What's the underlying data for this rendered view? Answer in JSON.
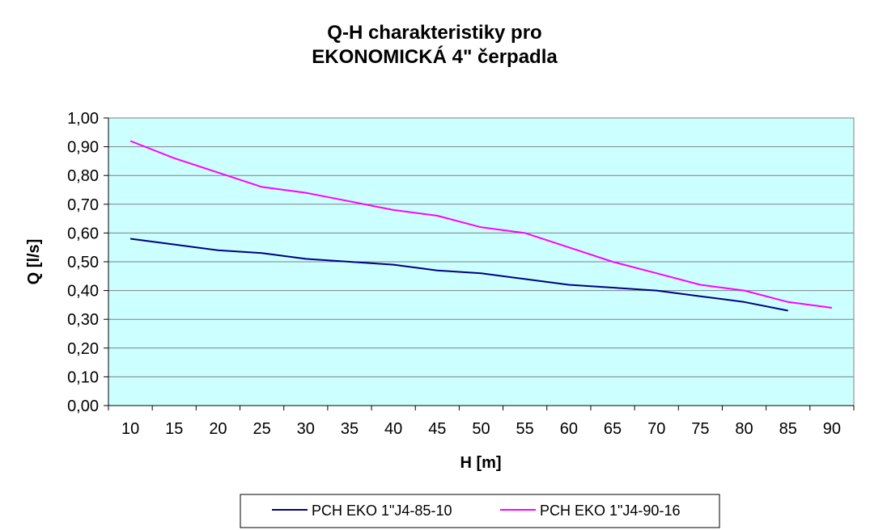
{
  "chart_data": {
    "type": "line",
    "title": [
      "Q-H charakteristiky pro",
      "EKONOMICKÁ 4\" čerpadla"
    ],
    "xlabel": "H [m]",
    "ylabel": "Q [l/s]",
    "categories": [
      "10",
      "15",
      "20",
      "25",
      "30",
      "35",
      "40",
      "45",
      "50",
      "55",
      "60",
      "65",
      "70",
      "75",
      "80",
      "85",
      "90"
    ],
    "ylim": [
      0,
      1
    ],
    "yticks": [
      "0,00",
      "0,10",
      "0,20",
      "0,30",
      "0,40",
      "0,50",
      "0,60",
      "0,70",
      "0,80",
      "0,90",
      "1,00"
    ],
    "grid": true,
    "plot_background": "#ccffff",
    "legend_position": "bottom",
    "series": [
      {
        "name": "PCH EKO 1\"J4-85-10",
        "color": "#000080",
        "values": [
          0.58,
          0.56,
          0.54,
          0.53,
          0.51,
          0.5,
          0.49,
          0.47,
          0.46,
          0.44,
          0.42,
          0.41,
          0.4,
          0.38,
          0.36,
          0.33,
          null
        ]
      },
      {
        "name": "PCH EKO 1\"J4-90-16",
        "color": "#ff00ff",
        "values": [
          0.92,
          0.86,
          0.81,
          0.76,
          0.74,
          0.71,
          0.68,
          0.66,
          0.62,
          0.6,
          0.55,
          0.5,
          0.46,
          0.42,
          0.4,
          0.36,
          0.34
        ]
      }
    ]
  }
}
